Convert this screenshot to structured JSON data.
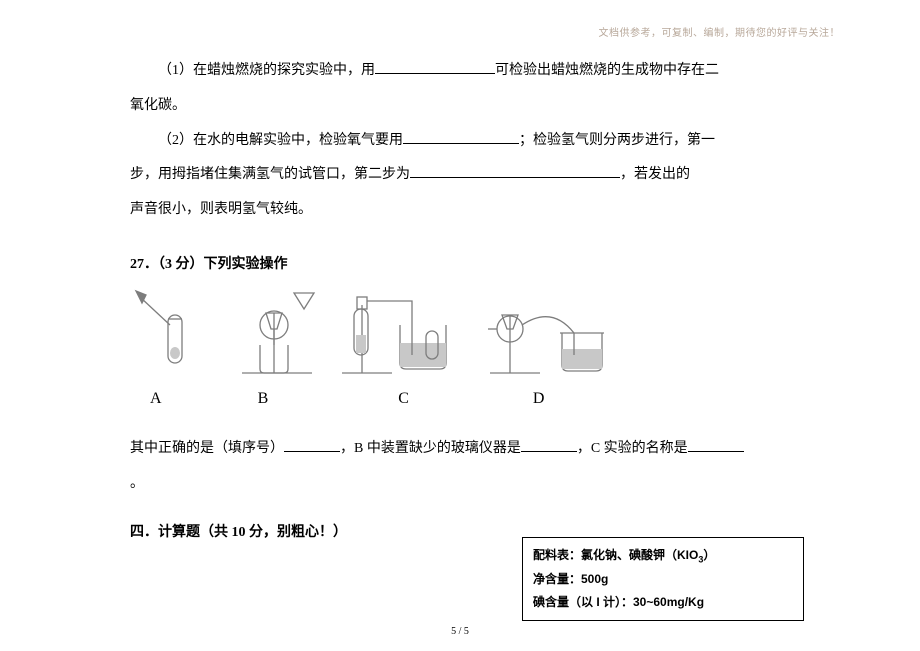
{
  "header_note": "文档供参考，可复制、编制，期待您的好评与关注！",
  "q1_a": "（1）在蜡烛燃烧的探究实验中，用",
  "q1_b": "可检验出蜡烛燃烧的生成物中存在二",
  "q1_c": "氧化碳。",
  "q2_a": "（2）在水的电解实验中，检验氧气要用",
  "q2_b": "；检验氢气则分两步进行，第一",
  "q2_c": "步，用拇指堵住集满氢气的试管口，第二步为",
  "q2_d": "，若发出的",
  "q2_e": "声音很小，则表明氢气较纯。",
  "q27_head": "27．（3 分）下列实验操作",
  "labels": {
    "A": "A",
    "B": "B",
    "C": "C",
    "D": "D"
  },
  "q27_line_a": "其中正确的是（填序号）",
  "q27_line_b": "，B 中装置缺少的玻璃仪器是",
  "q27_line_c": "，C 实验的名称是",
  "period": "。",
  "section4": "四．计算题（共 10 分，别粗心！）",
  "box_line1_a": "配料表：氯化钠、碘酸钾（KIO",
  "box_line1_sub": "3",
  "box_line1_b": "）",
  "box_line2": "净含量：500g",
  "box_line3": "碘含量（以 I 计）：30~60mg/Kg",
  "pagenum": "5 / 5",
  "blanks": {
    "b1": 120,
    "b2": 116,
    "b3": 210,
    "b4": 56,
    "b5": 56,
    "b6": 56
  },
  "svg": {
    "stroke": "#7d7d7d",
    "w": 92,
    "h": 92
  }
}
